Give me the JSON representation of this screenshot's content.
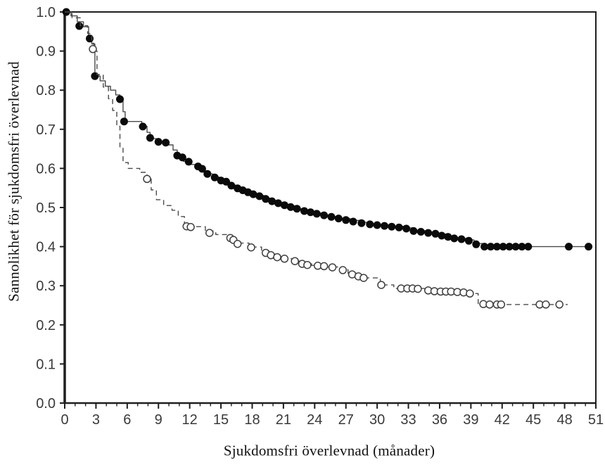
{
  "figure": {
    "background_color": "#ffffff",
    "axis_color": "#1f1f1f",
    "tick_label_color": "#3a3a3a",
    "title_color": "#111111"
  },
  "chart_data": {
    "type": "line",
    "subtype": "kaplan-meier-step-curves",
    "title": "",
    "xlabel": "Sjukdomsfri överlevnad (månader)",
    "ylabel": "Sannolikhet för sjukdomsfri överlevnad",
    "xlim": [
      0,
      51
    ],
    "ylim": [
      0.0,
      1.0
    ],
    "x_major_ticks": [
      0,
      3,
      6,
      9,
      12,
      15,
      18,
      21,
      24,
      27,
      30,
      33,
      36,
      39,
      42,
      45,
      48,
      51
    ],
    "x_minor_step": 1,
    "y_ticks": [
      "0.0",
      "0.1",
      "0.2",
      "0.3",
      "0.4",
      "0.5",
      "0.6",
      "0.7",
      "0.8",
      "0.9",
      "1.0"
    ],
    "grid": false,
    "legend_position": "none",
    "line_color": "#4a4a4a",
    "marker_fill_color": "#0a0a0a",
    "open_marker_stroke_color": "#3f3f3f",
    "series": [
      {
        "name": "filled-circles-solid",
        "line_style": "solid",
        "marker": "filled-circle",
        "final_value": 0.4,
        "steps": [
          [
            0,
            1.0
          ],
          [
            0.6,
            0.99
          ],
          [
            1.2,
            0.975
          ],
          [
            1.8,
            0.962
          ],
          [
            2.3,
            0.94
          ],
          [
            2.6,
            0.918
          ],
          [
            2.9,
            0.836
          ],
          [
            3.4,
            0.824
          ],
          [
            3.9,
            0.81
          ],
          [
            4.4,
            0.8
          ],
          [
            4.9,
            0.788
          ],
          [
            5.3,
            0.775
          ],
          [
            5.6,
            0.745
          ],
          [
            5.8,
            0.72
          ],
          [
            7.4,
            0.708
          ],
          [
            7.9,
            0.692
          ],
          [
            8.2,
            0.676
          ],
          [
            8.8,
            0.668
          ],
          [
            9.8,
            0.66
          ],
          [
            10.4,
            0.647
          ],
          [
            10.8,
            0.633
          ],
          [
            11.4,
            0.618
          ],
          [
            12.0,
            0.61
          ],
          [
            12.6,
            0.602
          ],
          [
            13.1,
            0.593
          ],
          [
            13.6,
            0.586
          ],
          [
            14.2,
            0.578
          ],
          [
            14.8,
            0.57
          ],
          [
            15.3,
            0.564
          ],
          [
            15.9,
            0.557
          ],
          [
            16.5,
            0.549
          ],
          [
            17.1,
            0.544
          ],
          [
            17.8,
            0.537
          ],
          [
            18.4,
            0.531
          ],
          [
            19.1,
            0.524
          ],
          [
            19.8,
            0.517
          ],
          [
            20.5,
            0.511
          ],
          [
            21.3,
            0.504
          ],
          [
            22.2,
            0.497
          ],
          [
            23.0,
            0.491
          ],
          [
            23.8,
            0.486
          ],
          [
            24.7,
            0.481
          ],
          [
            25.6,
            0.477
          ],
          [
            26.5,
            0.472
          ],
          [
            27.4,
            0.467
          ],
          [
            28.3,
            0.462
          ],
          [
            29.3,
            0.458
          ],
          [
            30.3,
            0.455
          ],
          [
            31.5,
            0.452
          ],
          [
            32.7,
            0.448
          ],
          [
            33.4,
            0.441
          ],
          [
            34.6,
            0.437
          ],
          [
            35.8,
            0.432
          ],
          [
            36.6,
            0.427
          ],
          [
            37.4,
            0.421
          ],
          [
            38.6,
            0.417
          ],
          [
            39.3,
            0.408
          ],
          [
            40.2,
            0.4
          ],
          [
            50.5,
            0.4
          ]
        ],
        "markers": [
          [
            0.15,
            1.0
          ],
          [
            1.4,
            0.964
          ],
          [
            2.4,
            0.932
          ],
          [
            2.9,
            0.836
          ],
          [
            5.3,
            0.777
          ],
          [
            5.7,
            0.72
          ],
          [
            7.5,
            0.707
          ],
          [
            8.2,
            0.678
          ],
          [
            9.0,
            0.668
          ],
          [
            9.7,
            0.666
          ],
          [
            10.8,
            0.633
          ],
          [
            11.3,
            0.628
          ],
          [
            11.9,
            0.617
          ],
          [
            12.8,
            0.605
          ],
          [
            13.2,
            0.599
          ],
          [
            13.7,
            0.586
          ],
          [
            14.4,
            0.577
          ],
          [
            15.0,
            0.569
          ],
          [
            15.5,
            0.566
          ],
          [
            16.0,
            0.556
          ],
          [
            16.6,
            0.549
          ],
          [
            17.1,
            0.544
          ],
          [
            17.6,
            0.539
          ],
          [
            18.1,
            0.534
          ],
          [
            18.7,
            0.529
          ],
          [
            19.3,
            0.522
          ],
          [
            19.9,
            0.516
          ],
          [
            20.5,
            0.511
          ],
          [
            21.1,
            0.506
          ],
          [
            21.7,
            0.501
          ],
          [
            22.3,
            0.497
          ],
          [
            23.0,
            0.491
          ],
          [
            23.6,
            0.488
          ],
          [
            24.2,
            0.484
          ],
          [
            24.9,
            0.48
          ],
          [
            25.6,
            0.476
          ],
          [
            26.3,
            0.472
          ],
          [
            27.0,
            0.468
          ],
          [
            27.7,
            0.464
          ],
          [
            28.5,
            0.46
          ],
          [
            29.3,
            0.457
          ],
          [
            30.0,
            0.455
          ],
          [
            30.7,
            0.453
          ],
          [
            31.4,
            0.451
          ],
          [
            32.1,
            0.449
          ],
          [
            32.8,
            0.446
          ],
          [
            33.5,
            0.44
          ],
          [
            34.2,
            0.438
          ],
          [
            34.9,
            0.435
          ],
          [
            35.6,
            0.433
          ],
          [
            36.2,
            0.428
          ],
          [
            36.8,
            0.425
          ],
          [
            37.4,
            0.421
          ],
          [
            38.1,
            0.419
          ],
          [
            38.8,
            0.415
          ],
          [
            39.5,
            0.406
          ],
          [
            40.3,
            0.4
          ],
          [
            40.9,
            0.4
          ],
          [
            41.5,
            0.4
          ],
          [
            42.1,
            0.4
          ],
          [
            42.7,
            0.4
          ],
          [
            43.3,
            0.4
          ],
          [
            43.9,
            0.4
          ],
          [
            44.5,
            0.4
          ],
          [
            48.4,
            0.4
          ],
          [
            50.3,
            0.4
          ]
        ]
      },
      {
        "name": "open-circles-dashed",
        "line_style": "dashed",
        "marker": "open-circle",
        "final_value": 0.25,
        "steps": [
          [
            0,
            1.0
          ],
          [
            0.7,
            0.985
          ],
          [
            1.5,
            0.965
          ],
          [
            2.2,
            0.945
          ],
          [
            2.6,
            0.92
          ],
          [
            2.8,
            0.9
          ],
          [
            3.1,
            0.84
          ],
          [
            3.7,
            0.808
          ],
          [
            4.2,
            0.778
          ],
          [
            4.6,
            0.748
          ],
          [
            5.0,
            0.708
          ],
          [
            5.3,
            0.655
          ],
          [
            5.6,
            0.615
          ],
          [
            6.1,
            0.6
          ],
          [
            7.2,
            0.59
          ],
          [
            7.9,
            0.573
          ],
          [
            8.3,
            0.545
          ],
          [
            8.8,
            0.52
          ],
          [
            9.5,
            0.505
          ],
          [
            10.3,
            0.493
          ],
          [
            10.9,
            0.477
          ],
          [
            11.5,
            0.458
          ],
          [
            12.0,
            0.451
          ],
          [
            13.5,
            0.44
          ],
          [
            14.5,
            0.431
          ],
          [
            15.8,
            0.422
          ],
          [
            16.4,
            0.409
          ],
          [
            17.7,
            0.399
          ],
          [
            18.9,
            0.389
          ],
          [
            19.6,
            0.381
          ],
          [
            20.4,
            0.374
          ],
          [
            21.2,
            0.369
          ],
          [
            22.0,
            0.363
          ],
          [
            22.8,
            0.356
          ],
          [
            23.7,
            0.352
          ],
          [
            25.2,
            0.348
          ],
          [
            26.5,
            0.341
          ],
          [
            27.2,
            0.332
          ],
          [
            28.0,
            0.326
          ],
          [
            28.8,
            0.32
          ],
          [
            30.3,
            0.302
          ],
          [
            31.6,
            0.293
          ],
          [
            34.6,
            0.288
          ],
          [
            35.6,
            0.285
          ],
          [
            38.8,
            0.28
          ],
          [
            39.7,
            0.253
          ],
          [
            40.5,
            0.252
          ],
          [
            48.3,
            0.252
          ]
        ],
        "markers": [
          [
            2.7,
            0.905
          ],
          [
            7.9,
            0.573
          ],
          [
            11.7,
            0.452
          ],
          [
            12.1,
            0.45
          ],
          [
            13.9,
            0.435
          ],
          [
            15.9,
            0.422
          ],
          [
            16.2,
            0.417
          ],
          [
            16.6,
            0.407
          ],
          [
            17.9,
            0.398
          ],
          [
            19.3,
            0.384
          ],
          [
            19.8,
            0.378
          ],
          [
            20.4,
            0.373
          ],
          [
            21.1,
            0.369
          ],
          [
            22.1,
            0.363
          ],
          [
            22.8,
            0.356
          ],
          [
            23.3,
            0.353
          ],
          [
            24.3,
            0.351
          ],
          [
            24.9,
            0.35
          ],
          [
            25.7,
            0.347
          ],
          [
            26.7,
            0.34
          ],
          [
            27.6,
            0.329
          ],
          [
            28.2,
            0.324
          ],
          [
            28.7,
            0.32
          ],
          [
            30.4,
            0.302
          ],
          [
            32.3,
            0.293
          ],
          [
            32.9,
            0.293
          ],
          [
            33.4,
            0.293
          ],
          [
            33.9,
            0.292
          ],
          [
            34.9,
            0.288
          ],
          [
            35.5,
            0.286
          ],
          [
            36.1,
            0.285
          ],
          [
            36.6,
            0.285
          ],
          [
            37.1,
            0.285
          ],
          [
            37.7,
            0.284
          ],
          [
            38.3,
            0.283
          ],
          [
            38.9,
            0.28
          ],
          [
            40.2,
            0.253
          ],
          [
            40.8,
            0.252
          ],
          [
            41.5,
            0.252
          ],
          [
            41.9,
            0.252
          ],
          [
            45.6,
            0.252
          ],
          [
            46.2,
            0.252
          ],
          [
            47.5,
            0.252
          ]
        ]
      }
    ]
  }
}
